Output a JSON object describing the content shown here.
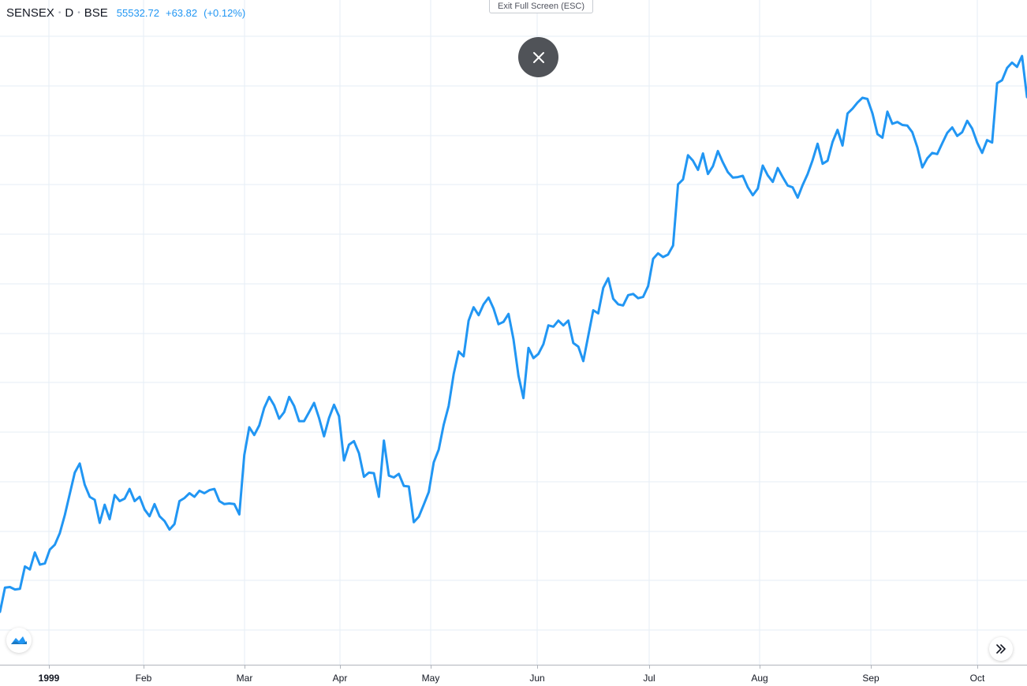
{
  "header": {
    "symbol": "SENSEX",
    "interval": "D",
    "exchange": "BSE",
    "price": "55532.72",
    "change": "+63.82",
    "change_pct": "(+0.12%)"
  },
  "exit_fullscreen_label": "Exit Full Screen (ESC)",
  "icons": {
    "close": "close-icon",
    "logo": "tradingview-logo-icon",
    "scroll": "double-chevron-right-icon"
  },
  "colors": {
    "line": "#2196f3",
    "grid": "#e6eef5",
    "close_button": "#505358"
  },
  "time_axis": [
    {
      "label": "1999",
      "year": true
    },
    {
      "label": "Feb"
    },
    {
      "label": "Mar"
    },
    {
      "label": "Apr"
    },
    {
      "label": "May"
    },
    {
      "label": "Jun"
    },
    {
      "label": "Jul"
    },
    {
      "label": "Aug"
    },
    {
      "label": "Sep"
    },
    {
      "label": "Oct"
    }
  ],
  "chart_data": {
    "type": "line",
    "x_unit": "months since start of Jan 1999",
    "grid": true,
    "series": [
      {
        "points": [
          [
            0.0,
            0.0
          ],
          [
            0.05,
            4.0
          ],
          [
            0.1,
            4.1
          ],
          [
            0.15,
            3.7
          ],
          [
            0.2,
            3.8
          ],
          [
            0.25,
            7.5
          ],
          [
            0.3,
            7.0
          ],
          [
            0.35,
            9.8
          ],
          [
            0.4,
            7.8
          ],
          [
            0.45,
            8.0
          ],
          [
            0.5,
            10.3
          ],
          [
            0.55,
            11.1
          ],
          [
            0.6,
            13.0
          ],
          [
            0.65,
            16.0
          ],
          [
            0.7,
            19.5
          ],
          [
            0.75,
            23.0
          ],
          [
            0.8,
            24.5
          ],
          [
            0.85,
            21.0
          ],
          [
            0.9,
            19.0
          ],
          [
            0.95,
            18.5
          ],
          [
            1.0,
            14.7
          ],
          [
            1.05,
            17.7
          ],
          [
            1.1,
            15.3
          ],
          [
            1.15,
            19.3
          ],
          [
            1.2,
            18.3
          ],
          [
            1.25,
            18.7
          ],
          [
            1.3,
            20.3
          ],
          [
            1.35,
            18.3
          ],
          [
            1.4,
            19.0
          ],
          [
            1.45,
            16.9
          ],
          [
            1.5,
            15.8
          ],
          [
            1.55,
            17.8
          ],
          [
            1.6,
            15.8
          ],
          [
            1.65,
            15.0
          ],
          [
            1.7,
            13.6
          ],
          [
            1.75,
            14.5
          ],
          [
            1.8,
            18.3
          ],
          [
            1.85,
            18.8
          ],
          [
            1.9,
            19.6
          ],
          [
            1.95,
            19.0
          ],
          [
            2.0,
            20.0
          ],
          [
            2.05,
            19.6
          ],
          [
            2.1,
            20.1
          ],
          [
            2.15,
            20.3
          ],
          [
            2.2,
            18.3
          ],
          [
            2.25,
            17.8
          ],
          [
            2.3,
            17.9
          ],
          [
            2.35,
            17.8
          ],
          [
            2.4,
            16.1
          ],
          [
            2.45,
            25.9
          ],
          [
            2.5,
            30.5
          ],
          [
            2.55,
            29.2
          ],
          [
            2.6,
            30.8
          ],
          [
            2.65,
            33.7
          ],
          [
            2.7,
            35.5
          ],
          [
            2.75,
            34.1
          ],
          [
            2.8,
            31.9
          ],
          [
            2.85,
            33.0
          ],
          [
            2.9,
            35.5
          ],
          [
            2.95,
            34.0
          ],
          [
            3.0,
            31.5
          ],
          [
            3.05,
            31.5
          ],
          [
            3.1,
            33.0
          ],
          [
            3.15,
            34.5
          ],
          [
            3.2,
            32.0
          ],
          [
            3.25,
            29.0
          ],
          [
            3.3,
            32.0
          ],
          [
            3.35,
            34.2
          ],
          [
            3.4,
            32.3
          ],
          [
            3.45,
            25.0
          ],
          [
            3.5,
            27.6
          ],
          [
            3.55,
            28.2
          ],
          [
            3.6,
            26.2
          ],
          [
            3.65,
            22.3
          ],
          [
            3.7,
            23.0
          ],
          [
            3.75,
            22.9
          ],
          [
            3.8,
            19.0
          ],
          [
            3.85,
            28.3
          ],
          [
            3.9,
            22.5
          ],
          [
            3.95,
            22.2
          ],
          [
            4.0,
            22.8
          ],
          [
            4.05,
            20.8
          ],
          [
            4.1,
            20.7
          ],
          [
            4.15,
            14.8
          ],
          [
            4.2,
            15.7
          ],
          [
            4.25,
            17.7
          ],
          [
            4.3,
            19.8
          ],
          [
            4.35,
            24.7
          ],
          [
            4.4,
            26.8
          ],
          [
            4.45,
            30.9
          ],
          [
            4.5,
            34.0
          ],
          [
            4.55,
            39.3
          ],
          [
            4.6,
            43.0
          ],
          [
            4.65,
            42.2
          ],
          [
            4.7,
            48.1
          ],
          [
            4.75,
            50.3
          ],
          [
            4.8,
            49.0
          ],
          [
            4.85,
            50.8
          ],
          [
            4.9,
            51.9
          ],
          [
            4.95,
            50.1
          ],
          [
            5.0,
            47.5
          ],
          [
            5.05,
            47.9
          ],
          [
            5.1,
            49.2
          ],
          [
            5.15,
            45.0
          ],
          [
            5.2,
            39.0
          ],
          [
            5.25,
            35.3
          ],
          [
            5.3,
            43.6
          ],
          [
            5.35,
            41.9
          ],
          [
            5.4,
            42.6
          ],
          [
            5.45,
            44.2
          ],
          [
            5.5,
            47.3
          ],
          [
            5.55,
            47.1
          ],
          [
            5.6,
            48.1
          ],
          [
            5.65,
            47.3
          ],
          [
            5.7,
            48.1
          ],
          [
            5.75,
            44.4
          ],
          [
            5.8,
            43.8
          ],
          [
            5.85,
            41.4
          ],
          [
            5.9,
            45.6
          ],
          [
            5.95,
            49.8
          ],
          [
            6.0,
            49.3
          ],
          [
            6.05,
            53.5
          ],
          [
            6.1,
            55.1
          ],
          [
            6.15,
            51.7
          ],
          [
            6.2,
            50.8
          ],
          [
            6.25,
            50.6
          ],
          [
            6.3,
            52.3
          ],
          [
            6.35,
            52.5
          ],
          [
            6.4,
            51.8
          ],
          [
            6.45,
            52.0
          ],
          [
            6.5,
            53.8
          ],
          [
            6.55,
            58.3
          ],
          [
            6.6,
            59.2
          ],
          [
            6.65,
            58.6
          ],
          [
            6.7,
            59.0
          ],
          [
            6.75,
            60.5
          ],
          [
            6.8,
            70.6
          ],
          [
            6.85,
            71.4
          ],
          [
            6.9,
            75.4
          ],
          [
            6.95,
            74.5
          ],
          [
            7.0,
            73.0
          ],
          [
            7.05,
            75.7
          ],
          [
            7.1,
            72.3
          ],
          [
            7.15,
            73.6
          ],
          [
            7.2,
            76.1
          ],
          [
            7.25,
            74.2
          ],
          [
            7.3,
            72.6
          ],
          [
            7.35,
            71.7
          ],
          [
            7.4,
            71.8
          ],
          [
            7.45,
            72.0
          ],
          [
            7.5,
            70.1
          ],
          [
            7.55,
            68.8
          ],
          [
            7.6,
            69.9
          ],
          [
            7.65,
            73.7
          ],
          [
            7.7,
            72.1
          ],
          [
            7.75,
            71.0
          ],
          [
            7.8,
            73.3
          ],
          [
            7.85,
            71.8
          ],
          [
            7.9,
            70.4
          ],
          [
            7.95,
            70.1
          ],
          [
            8.0,
            68.4
          ],
          [
            8.05,
            70.5
          ],
          [
            8.1,
            72.3
          ],
          [
            8.15,
            74.6
          ],
          [
            8.2,
            77.3
          ],
          [
            8.25,
            74.0
          ],
          [
            8.3,
            74.5
          ],
          [
            8.35,
            77.6
          ],
          [
            8.4,
            79.6
          ],
          [
            8.45,
            77.0
          ],
          [
            8.5,
            82.3
          ],
          [
            8.55,
            83.1
          ],
          [
            8.6,
            84.1
          ],
          [
            8.65,
            84.9
          ],
          [
            8.7,
            84.7
          ],
          [
            8.75,
            82.3
          ],
          [
            8.8,
            78.9
          ],
          [
            8.85,
            78.3
          ],
          [
            8.9,
            82.6
          ],
          [
            8.95,
            80.6
          ],
          [
            9.0,
            80.9
          ],
          [
            9.05,
            80.4
          ],
          [
            9.1,
            80.3
          ],
          [
            9.15,
            79.2
          ],
          [
            9.2,
            76.7
          ],
          [
            9.25,
            73.4
          ],
          [
            9.3,
            74.9
          ],
          [
            9.35,
            75.8
          ],
          [
            9.4,
            75.6
          ],
          [
            9.45,
            77.4
          ],
          [
            9.5,
            79.1
          ],
          [
            9.55,
            80.0
          ],
          [
            9.6,
            78.6
          ],
          [
            9.65,
            79.2
          ],
          [
            9.7,
            81.1
          ],
          [
            9.75,
            79.8
          ],
          [
            9.8,
            77.5
          ],
          [
            9.85,
            75.8
          ],
          [
            9.9,
            77.9
          ],
          [
            9.95,
            77.5
          ],
          [
            10.0,
            87.3
          ],
          [
            10.05,
            87.8
          ],
          [
            10.1,
            89.8
          ],
          [
            10.15,
            90.7
          ],
          [
            10.2,
            90.0
          ],
          [
            10.25,
            91.8
          ],
          [
            10.3,
            85.0
          ]
        ]
      }
    ]
  }
}
